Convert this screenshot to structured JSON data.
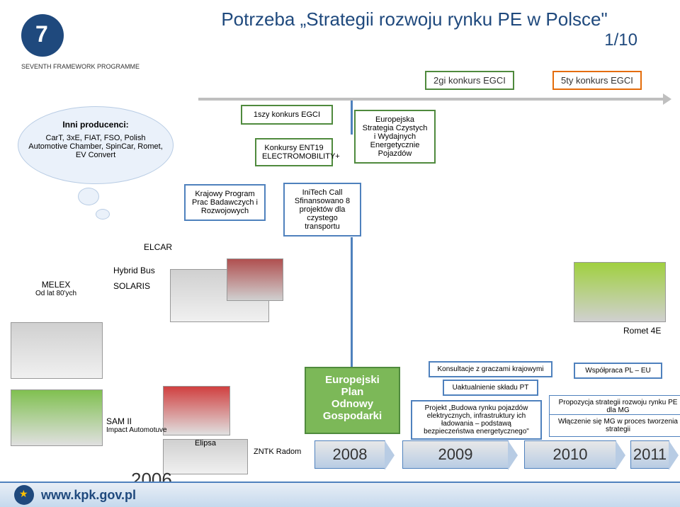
{
  "header": {
    "title": "Potrzeba „Strategii rozwoju rynku PE w Polsce\"",
    "subtitle": "1/10"
  },
  "fp7": {
    "text": "SEVENTH FRAMEWORK PROGRAMME"
  },
  "legend": {
    "egci2": "2gi konkurs EGCI",
    "egci5": "5ty konkurs EGCI"
  },
  "cloud": {
    "title": "Inni producenci:",
    "body": "CarT, 3xE, FIAT, FSO, Polish Automotive Chamber, SpinCar, Romet, EV Convert"
  },
  "boxes": {
    "egci1": "1szy konkurs EGCI",
    "ent19": "Konkursy ENT19 ELECTROMOBILITY+",
    "eur_strat": "Europejska Strategia Czystych i Wydajnych Energetycznie Pojazdów",
    "krajowy": "Krajowy Program Prac Badawczych i Rozwojowych",
    "initech_title": "IniTech Call",
    "initech_body": "Sfinansowano 8 projektów dla czystego transportu"
  },
  "labels": {
    "elcar": "ELCAR",
    "melex": "MELEX",
    "melex_sub": "Od lat 80'ych",
    "hybrid_bus": "Hybrid Bus",
    "solaris": "SOLARIS",
    "romet": "Romet 4E",
    "sam": "SAM II",
    "sam_sub": "Impact Automotuve",
    "elipsa": "Elipsa",
    "zntk": "ZNTK Radom"
  },
  "plan": {
    "line1": "Europejski",
    "line2": "Plan",
    "line3": "Odnowy",
    "line4": "Gospodarki"
  },
  "info": {
    "konsult": "Konsultacje z graczami krajowymi",
    "uakt": "Uaktualnienie składu PT",
    "projekt": "Projekt „Budowa rynku pojazdów elektrycznych, infrastruktury ich ładowania – podstawą bezpieczeństwa energetycznego\"",
    "wspol": "Współpraca PL – EU",
    "propoz": "Propozycja strategii rozwoju rynku PE dla MG",
    "wlacz": "Włączenie się MG w proces tworzenia strategii"
  },
  "years": {
    "y2006": "2006",
    "y2008": "2008",
    "y2009": "2009",
    "y2010": "2010",
    "y2011": "2011"
  },
  "footer": {
    "url": "www.kpk.gov.pl"
  },
  "colors": {
    "primary_blue": "#1f497d",
    "box_blue": "#4f81bd",
    "box_green": "#4f8a3d",
    "plan_green": "#7cb858",
    "cloud_bg": "#eaf1fa"
  }
}
